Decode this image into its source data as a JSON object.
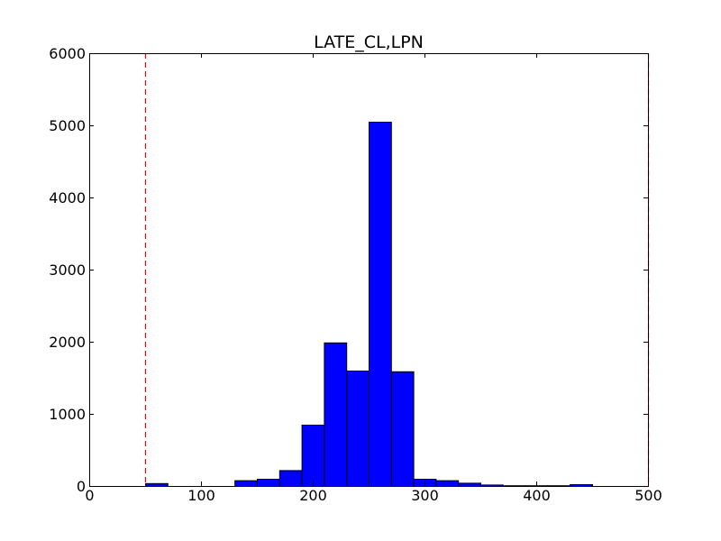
{
  "chart_data": {
    "type": "bar",
    "title": "LATE_CL,LPN",
    "xlabel": "",
    "ylabel": "",
    "xlim": [
      0,
      500
    ],
    "ylim": [
      0,
      6000
    ],
    "x_ticks": [
      0,
      100,
      200,
      300,
      400,
      500
    ],
    "y_ticks": [
      0,
      1000,
      2000,
      3000,
      4000,
      5000,
      6000
    ],
    "bins": [
      {
        "x0": 50,
        "x1": 70,
        "count": 40
      },
      {
        "x0": 70,
        "x1": 90,
        "count": 0
      },
      {
        "x0": 90,
        "x1": 110,
        "count": 0
      },
      {
        "x0": 110,
        "x1": 130,
        "count": 0
      },
      {
        "x0": 130,
        "x1": 150,
        "count": 80
      },
      {
        "x0": 150,
        "x1": 170,
        "count": 100
      },
      {
        "x0": 170,
        "x1": 190,
        "count": 220
      },
      {
        "x0": 190,
        "x1": 210,
        "count": 850
      },
      {
        "x0": 210,
        "x1": 230,
        "count": 1990
      },
      {
        "x0": 230,
        "x1": 250,
        "count": 1600
      },
      {
        "x0": 250,
        "x1": 270,
        "count": 5050
      },
      {
        "x0": 270,
        "x1": 290,
        "count": 1590
      },
      {
        "x0": 290,
        "x1": 310,
        "count": 100
      },
      {
        "x0": 310,
        "x1": 330,
        "count": 80
      },
      {
        "x0": 330,
        "x1": 350,
        "count": 45
      },
      {
        "x0": 350,
        "x1": 370,
        "count": 20
      },
      {
        "x0": 370,
        "x1": 390,
        "count": 10
      },
      {
        "x0": 390,
        "x1": 410,
        "count": 10
      },
      {
        "x0": 410,
        "x1": 430,
        "count": 10
      },
      {
        "x0": 430,
        "x1": 450,
        "count": 25
      }
    ],
    "reference_lines": [
      {
        "x": 50,
        "color": "#ff0000",
        "style": "dashed"
      },
      {
        "x": 500,
        "color": "#ff0000",
        "style": "dashed"
      }
    ],
    "bar_color": "#0000ff",
    "edge_color": "#000000",
    "grid": false,
    "legend": "none"
  }
}
